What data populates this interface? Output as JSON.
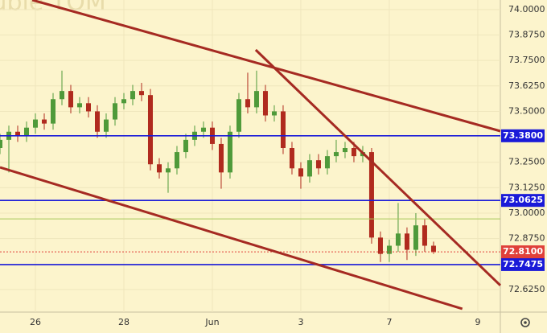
{
  "chart_data": {
    "type": "candlestick",
    "title": "Ruble TOM",
    "x": [
      -0.8,
      -0.6,
      -0.4,
      -0.2,
      0,
      0.2,
      0.4,
      0.6,
      0.8,
      1,
      1.2,
      1.4,
      1.6,
      1.8,
      2,
      2.2,
      2.4,
      2.6,
      2.8,
      3,
      3.2,
      3.4,
      3.6,
      3.8,
      4,
      4.2,
      4.4,
      4.6,
      4.8,
      5,
      5.2,
      5.4,
      5.6,
      5.8,
      6,
      6.2,
      6.4,
      6.6,
      6.8,
      7,
      7.2,
      7.4,
      7.6,
      7.8,
      8,
      8.2,
      8.4,
      8.6,
      8.8,
      9
    ],
    "open": [
      73.32,
      73.36,
      73.4,
      73.38,
      73.42,
      73.46,
      73.44,
      73.56,
      73.6,
      73.52,
      73.54,
      73.5,
      73.4,
      73.46,
      73.54,
      73.56,
      73.6,
      73.58,
      73.24,
      73.2,
      73.22,
      73.3,
      73.36,
      73.4,
      73.42,
      73.34,
      73.2,
      73.4,
      73.56,
      73.52,
      73.6,
      73.48,
      73.5,
      73.32,
      73.22,
      73.18,
      73.26,
      73.22,
      73.28,
      73.3,
      73.32,
      73.28,
      73.3,
      72.88,
      72.8,
      72.84,
      72.9,
      72.82,
      72.94,
      72.84
    ],
    "high": [
      73.39,
      73.43,
      73.43,
      73.45,
      73.49,
      73.49,
      73.59,
      73.7,
      73.63,
      73.57,
      73.57,
      73.53,
      73.49,
      73.57,
      73.59,
      73.63,
      73.64,
      73.61,
      73.27,
      73.25,
      73.33,
      73.39,
      73.43,
      73.45,
      73.45,
      73.37,
      73.43,
      73.59,
      73.69,
      73.7,
      73.63,
      73.53,
      73.53,
      73.35,
      73.25,
      73.29,
      73.29,
      73.31,
      73.36,
      73.35,
      73.35,
      73.33,
      73.32,
      72.91,
      72.87,
      73.05,
      72.93,
      73.0,
      72.97,
      72.86
    ],
    "low": [
      73.29,
      73.2,
      73.35,
      73.35,
      73.39,
      73.41,
      73.41,
      73.53,
      73.49,
      73.49,
      73.47,
      73.37,
      73.37,
      73.43,
      73.51,
      73.53,
      73.55,
      73.21,
      73.17,
      73.1,
      73.19,
      73.27,
      73.33,
      73.37,
      73.31,
      73.12,
      73.17,
      73.37,
      73.49,
      73.49,
      73.45,
      73.45,
      73.29,
      73.19,
      73.12,
      73.15,
      73.19,
      73.19,
      73.25,
      73.27,
      73.25,
      73.25,
      72.85,
      72.76,
      72.76,
      72.81,
      72.77,
      72.79,
      72.81,
      72.8
    ],
    "close": [
      73.36,
      73.4,
      73.38,
      73.42,
      73.46,
      73.44,
      73.56,
      73.6,
      73.52,
      73.54,
      73.5,
      73.4,
      73.46,
      73.54,
      73.56,
      73.6,
      73.58,
      73.24,
      73.2,
      73.22,
      73.3,
      73.36,
      73.4,
      73.42,
      73.34,
      73.2,
      73.4,
      73.56,
      73.52,
      73.6,
      73.48,
      73.5,
      73.32,
      73.22,
      73.18,
      73.26,
      73.22,
      73.28,
      73.3,
      73.32,
      73.28,
      73.3,
      72.88,
      72.8,
      72.84,
      72.9,
      72.82,
      72.94,
      72.84,
      72.81
    ],
    "up_color": "#4f9a3a",
    "down_color": "#b02a1e",
    "xlim": [
      -0.8,
      10.51
    ],
    "ylim": [
      72.514,
      74.047
    ],
    "xticks": [
      {
        "value": 0,
        "label": "26"
      },
      {
        "value": 2,
        "label": "28"
      },
      {
        "value": 4,
        "label": "Jun"
      },
      {
        "value": 6,
        "label": "3"
      },
      {
        "value": 8,
        "label": "7"
      },
      {
        "value": 10,
        "label": "9"
      }
    ],
    "yticks": [
      {
        "value": 74,
        "label": "74.0000"
      },
      {
        "value": 73.875,
        "label": "73.8750"
      },
      {
        "value": 73.75,
        "label": "73.7500"
      },
      {
        "value": 73.625,
        "label": "73.6250"
      },
      {
        "value": 73.5,
        "label": "73.5000"
      },
      {
        "value": 73.25,
        "label": "73.2500"
      },
      {
        "value": 73.125,
        "label": "73.1250"
      },
      {
        "value": 73,
        "label": "73.0000"
      },
      {
        "value": 72.875,
        "label": "72.8750"
      },
      {
        "value": 72.625,
        "label": "72.6250"
      }
    ],
    "grid": true,
    "levels": [
      {
        "value": 73.38,
        "label": "73.3800",
        "color": "#1a1ad8"
      },
      {
        "value": 73.0625,
        "label": "73.0625",
        "color": "#1a1ad8"
      },
      {
        "value": 72.7475,
        "label": "72.7475",
        "color": "#1a1ad8"
      },
      {
        "value": 72.81,
        "label": "72.8100",
        "color": "#e0403a",
        "dashed": true
      },
      {
        "value": 72.972,
        "color": "#a8c85a"
      }
    ],
    "trendlines": [
      {
        "x": [
          -0.07,
          10.51
        ],
        "y": [
          74.047,
          73.403
        ],
        "color": "#a52a22"
      },
      {
        "x": [
          4.98,
          10.51
        ],
        "y": [
          73.802,
          72.645
        ],
        "color": "#a52a22"
      },
      {
        "x": [
          -0.8,
          9.65
        ],
        "y": [
          73.225,
          72.53
        ],
        "color": "#a52a22"
      }
    ]
  }
}
